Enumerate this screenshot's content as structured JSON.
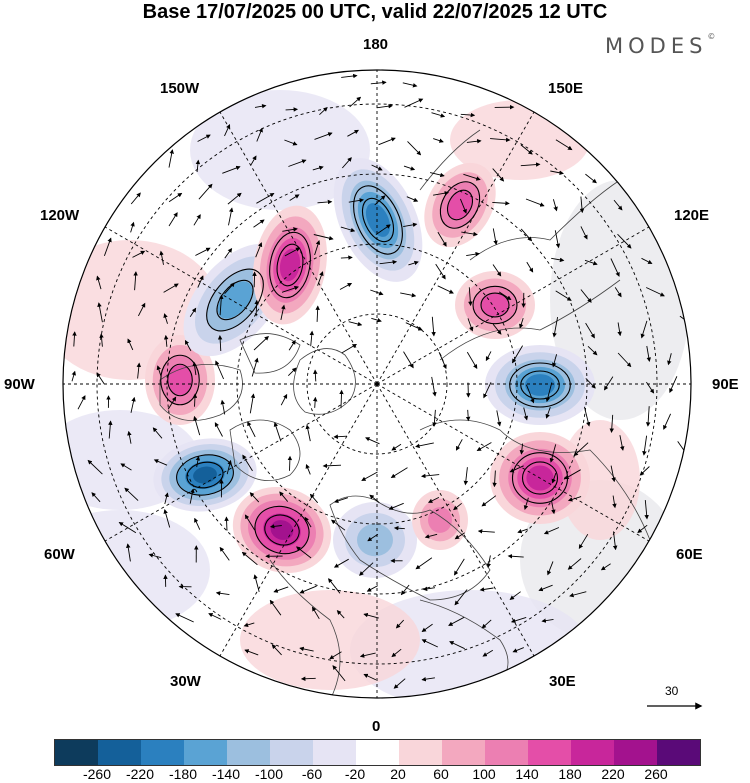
{
  "title": "Base 17/07/2025 00 UTC, valid 22/07/2025 12 UTC",
  "brand": {
    "name": "MODES",
    "mark": "©"
  },
  "lon_labels": {
    "top": "180",
    "bottom": "0",
    "left": "90W",
    "right": "90E",
    "nw_upper": "150W",
    "nw_lower": "120W",
    "ne_upper": "150E",
    "ne_lower": "120E",
    "sw_upper": "60W",
    "sw_lower": "30W",
    "se_upper": "60E",
    "se_lower": "30E"
  },
  "reference_vector": {
    "value": "30"
  },
  "colorbar": {
    "colors": [
      "#0d3b5c",
      "#14609a",
      "#2b80bf",
      "#5aa3d4",
      "#9cbfdf",
      "#c9d3eb",
      "#e6e4f4",
      "#ffffff",
      "#f9d6da",
      "#f3a8bf",
      "#ec7fb2",
      "#e44ea8",
      "#c8269b",
      "#a3128e",
      "#5a0a78"
    ],
    "labels": [
      "-260",
      "-220",
      "-180",
      "-140",
      "-100",
      "-60",
      "-20",
      "20",
      "60",
      "100",
      "140",
      "180",
      "220",
      "260"
    ]
  },
  "anomaly_centers": [
    {
      "sign": "negative",
      "strength": 220,
      "region": "North Atlantic south of Greenland"
    },
    {
      "sign": "positive",
      "strength": 240,
      "region": "Central North Atlantic"
    },
    {
      "sign": "positive",
      "strength": 140,
      "region": "Hudson Bay"
    },
    {
      "sign": "negative",
      "strength": 140,
      "region": "Northwest Canada"
    },
    {
      "sign": "positive",
      "strength": 180,
      "region": "Beaufort Sea"
    },
    {
      "sign": "negative",
      "strength": 180,
      "region": "East Siberian Sea"
    },
    {
      "sign": "positive",
      "strength": 140,
      "region": "Chukotka"
    },
    {
      "sign": "positive",
      "strength": 140,
      "region": "Yakutia"
    },
    {
      "sign": "negative",
      "strength": 180,
      "region": "Central Siberia"
    },
    {
      "sign": "positive",
      "strength": 200,
      "region": "Western Siberia"
    },
    {
      "sign": "negative",
      "strength": 100,
      "region": "Northern Europe"
    },
    {
      "sign": "positive",
      "strength": 100,
      "region": "Scandinavia east"
    }
  ]
}
